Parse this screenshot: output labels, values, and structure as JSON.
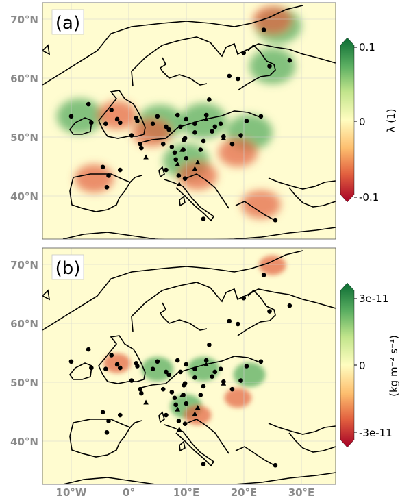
{
  "chart_data": [
    {
      "type": "heatmap",
      "panel_label": "(a)",
      "map_region": "Europe",
      "lon_range": [
        -15,
        36
      ],
      "lat_range": [
        32,
        73
      ],
      "y_ticks": [
        "70°N",
        "60°N",
        "50°N",
        "40°N"
      ],
      "colorbar": {
        "label": "λ (1)",
        "ticks": [
          "0.1",
          "0",
          "-0.1"
        ],
        "range": [
          -0.1,
          0.1
        ],
        "colormap": [
          "#a50026",
          "#e2603f",
          "#fdbf6f",
          "#fffdc0",
          "#c2e58c",
          "#5aae61",
          "#0b6b33"
        ]
      },
      "hotspots_positive": [
        {
          "region": "Germany/Poland",
          "lon": 13,
          "lat": 52.5
        },
        {
          "region": "Netherlands",
          "lon": 5.5,
          "lat": 52.2
        },
        {
          "region": "Ireland",
          "lon": -8.5,
          "lat": 53.3
        },
        {
          "region": "Northern Finland",
          "lon": 26,
          "lat": 69
        },
        {
          "region": "Southern Finland",
          "lon": 25,
          "lat": 62
        },
        {
          "region": "Poland east",
          "lon": 21,
          "lat": 50.5
        },
        {
          "region": "Northern Italy",
          "lon": 10,
          "lat": 45.5
        }
      ],
      "hotspots_negative": [
        {
          "region": "England",
          "lon": -2,
          "lat": 53.5
        },
        {
          "region": "Northern Spain",
          "lon": -6,
          "lat": 42.5
        },
        {
          "region": "Belgium",
          "lon": 4,
          "lat": 50.5
        },
        {
          "region": "Hungary",
          "lon": 19,
          "lat": 47
        },
        {
          "region": "Italy",
          "lon": 12,
          "lat": 43
        },
        {
          "region": "Northern Finland",
          "lon": 25,
          "lat": 70
        },
        {
          "region": "Greece",
          "lon": 23,
          "lat": 38
        }
      ]
    },
    {
      "type": "heatmap",
      "panel_label": "(b)",
      "map_region": "Europe",
      "lon_range": [
        -15,
        36
      ],
      "lat_range": [
        32,
        73
      ],
      "x_ticks": [
        "10°W",
        "0°",
        "10°E",
        "20°E",
        "30°E"
      ],
      "y_ticks": [
        "70°N",
        "60°N",
        "50°N",
        "40°N"
      ],
      "colorbar": {
        "label": "(kg m⁻² s⁻¹)",
        "ticks": [
          "3e-11",
          "0",
          "-3e-11"
        ],
        "range": [
          -3e-11,
          3e-11
        ],
        "colormap": [
          "#a50026",
          "#e2603f",
          "#fdbf6f",
          "#fffdc0",
          "#c2e58c",
          "#5aae61",
          "#0b6b33"
        ]
      },
      "hotspots_positive": [
        {
          "region": "Germany/Poland",
          "lon": 13,
          "lat": 52
        },
        {
          "region": "Netherlands",
          "lon": 5,
          "lat": 52
        },
        {
          "region": "Poland east",
          "lon": 21,
          "lat": 51
        },
        {
          "region": "Northern Italy",
          "lon": 10,
          "lat": 45.5
        }
      ],
      "hotspots_negative": [
        {
          "region": "England",
          "lon": -2,
          "lat": 53
        },
        {
          "region": "Northern Finland",
          "lon": 25,
          "lat": 70
        },
        {
          "region": "Hungary",
          "lon": 19,
          "lat": 47
        },
        {
          "region": "Italy",
          "lon": 12,
          "lat": 44
        }
      ]
    }
  ],
  "stations": {
    "circles": [
      [
        -10,
        53.3
      ],
      [
        -7,
        55.4
      ],
      [
        -6.5,
        52.2
      ],
      [
        -3,
        54.4
      ],
      [
        -4,
        52
      ],
      [
        -1.5,
        52.2
      ],
      [
        1.3,
        53
      ],
      [
        1.5,
        52.5
      ],
      [
        4.2,
        52
      ],
      [
        5,
        53.3
      ],
      [
        6.5,
        51.5
      ],
      [
        8.5,
        53.5
      ],
      [
        10,
        52.8
      ],
      [
        11.5,
        52
      ],
      [
        13.5,
        53.5
      ],
      [
        14,
        56.2
      ],
      [
        15,
        51.5
      ],
      [
        16.5,
        49.8
      ],
      [
        18,
        48.5
      ],
      [
        19.5,
        50
      ],
      [
        20.5,
        52.5
      ],
      [
        23,
        53.3
      ],
      [
        23.5,
        68.3
      ],
      [
        24.5,
        62
      ],
      [
        28,
        63
      ],
      [
        20,
        64.3
      ],
      [
        17.5,
        60.3
      ],
      [
        19,
        59.8
      ],
      [
        2,
        48.5
      ],
      [
        2.2,
        47.8
      ],
      [
        6,
        48.5
      ],
      [
        7,
        51
      ],
      [
        7.5,
        48
      ],
      [
        8,
        47
      ],
      [
        8.2,
        45.8
      ],
      [
        9.5,
        47.5
      ],
      [
        9.8,
        49.5
      ],
      [
        9.6,
        49.2
      ],
      [
        10,
        46
      ],
      [
        6.5,
        44
      ],
      [
        8.7,
        43
      ],
      [
        9.8,
        42.5
      ],
      [
        12.5,
        47.5
      ],
      [
        13,
        49
      ],
      [
        -4.5,
        44.5
      ],
      [
        -3.5,
        43
      ],
      [
        -3.8,
        41
      ],
      [
        -1.5,
        44
      ],
      [
        0.5,
        50
      ],
      [
        13,
        35.5
      ],
      [
        25.5,
        35.3
      ],
      [
        14.5,
        50.7
      ],
      [
        16,
        52
      ],
      [
        11.5,
        50.5
      ],
      [
        9,
        51.5
      ],
      [
        -2,
        52.8
      ]
    ],
    "triangles": [
      [
        3,
        46.2
      ],
      [
        8.5,
        45
      ],
      [
        9.3,
        47.5
      ],
      [
        11.5,
        44.2
      ],
      [
        12,
        45.3
      ],
      [
        13.5,
        52.8
      ],
      [
        16.5,
        49.5
      ],
      [
        8.8,
        41.5
      ]
    ]
  }
}
